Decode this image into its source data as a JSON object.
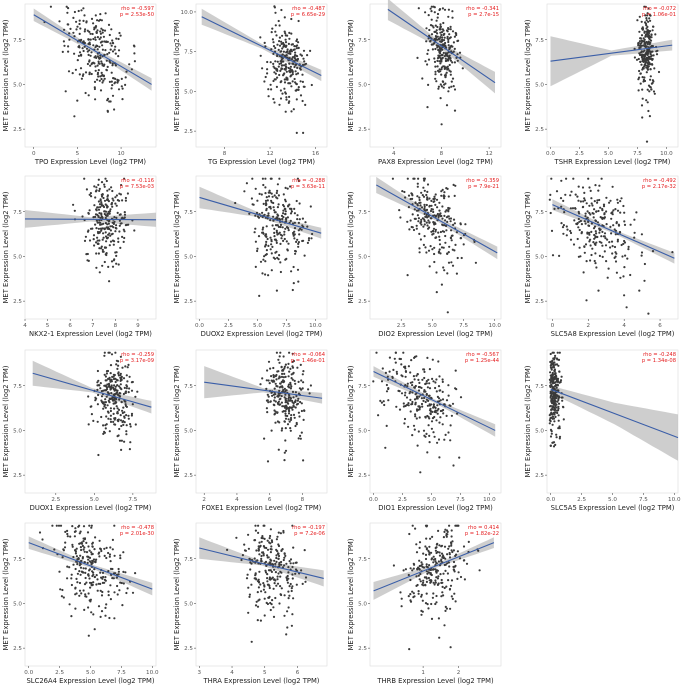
{
  "y_label": "MET Expression Level (log2 TPM)",
  "colors": {
    "points": "#3a3a3a",
    "line": "#3a5ea8",
    "band": "#b9b9b9",
    "stats": "#e41a1c",
    "axis": "#333333"
  },
  "chart_data": [
    {
      "type": "scatter",
      "xlabel": "TPO Expression Level (log2 TPM)",
      "rho": "rho = -0.597",
      "p": "p = 2.53e-50",
      "x_ticks": [
        "0",
        "5",
        "10"
      ],
      "x_range": [
        -1,
        14
      ],
      "y_ticks": [
        "2.5",
        "5.0",
        "7.5"
      ],
      "y_range": [
        1.5,
        9.5
      ],
      "regression": {
        "x0": 0,
        "y0": 8.9,
        "x1": 13.5,
        "y1": 5.0
      },
      "band_width": [
        0.35,
        0.12,
        0.35
      ],
      "cloud_center": 7.0,
      "cloud_spread": 3.5,
      "n_points": 260
    },
    {
      "type": "scatter",
      "xlabel": "TG Expression Level (log2 TPM)",
      "rho": "rho = -0.487",
      "p": "p = 6.65e-29",
      "x_ticks": [
        "8",
        "12",
        "16"
      ],
      "x_range": [
        5.5,
        17
      ],
      "y_ticks": [
        "2.5",
        "5.0",
        "7.5",
        "10.0"
      ],
      "y_range": [
        1.5,
        10.5
      ],
      "regression": {
        "x0": 6,
        "y0": 9.7,
        "x1": 16.5,
        "y1": 6.0
      },
      "band_width": [
        0.5,
        0.15,
        0.35
      ],
      "cloud_center": 13.5,
      "cloud_spread": 1.6,
      "n_points": 260
    },
    {
      "type": "scatter",
      "xlabel": "PAX8 Expression Level (log2 TPM)",
      "rho": "rho = -0.341",
      "p": "p = 2.7e-15",
      "x_ticks": [
        "4",
        "8",
        "12"
      ],
      "x_range": [
        2,
        13
      ],
      "y_ticks": [
        "2.5",
        "5.0",
        "7.5"
      ],
      "y_range": [
        1.5,
        9.5
      ],
      "regression": {
        "x0": 3.5,
        "y0": 9.2,
        "x1": 12.5,
        "y1": 5.1
      },
      "band_width": [
        0.6,
        0.15,
        0.6
      ],
      "cloud_center": 8.0,
      "cloud_spread": 1.1,
      "n_points": 260
    },
    {
      "type": "scatter",
      "xlabel": "TSHR Expression Level (log2 TPM)",
      "rho": "rho = -0.072",
      "p": "p = 1.06e-01",
      "x_ticks": [
        "0.0",
        "2.5",
        "5.0",
        "7.5",
        "10.0"
      ],
      "x_range": [
        -0.3,
        11
      ],
      "y_ticks": [
        "2.5",
        "5.0",
        "7.5"
      ],
      "y_range": [
        1.5,
        9.5
      ],
      "regression": {
        "x0": 0,
        "y0": 6.3,
        "x1": 10.5,
        "y1": 7.2
      },
      "band_width": [
        1.4,
        0.15,
        0.3
      ],
      "cloud_center": 8.3,
      "cloud_spread": 0.7,
      "n_points": 260
    },
    {
      "type": "scatter",
      "xlabel": "NKX2-1 Expression Level (log2 TPM)",
      "rho": "rho = -0.116",
      "p": "p = 7.53e-03",
      "x_ticks": [
        "4",
        "5",
        "6",
        "7",
        "8",
        "9"
      ],
      "x_range": [
        4,
        9.8
      ],
      "y_ticks": [
        "2.5",
        "5.0",
        "7.5"
      ],
      "y_range": [
        1.5,
        9.5
      ],
      "regression": {
        "x0": 4,
        "y0": 7.1,
        "x1": 9.8,
        "y1": 7.05
      },
      "band_width": [
        0.5,
        0.12,
        0.4
      ],
      "cloud_center": 7.6,
      "cloud_spread": 0.9,
      "n_points": 260
    },
    {
      "type": "scatter",
      "xlabel": "DUOX2 Expression Level (log2 TPM)",
      "rho": "rho = -0.288",
      "p": "p = 3.63e-11",
      "x_ticks": [
        "0.0",
        "2.5",
        "5.0",
        "7.5",
        "10.0"
      ],
      "x_range": [
        -0.3,
        11
      ],
      "y_ticks": [
        "2.5",
        "5.0",
        "7.5"
      ],
      "y_range": [
        1.5,
        9.5
      ],
      "regression": {
        "x0": 0,
        "y0": 8.3,
        "x1": 10.5,
        "y1": 6.3
      },
      "band_width": [
        0.6,
        0.12,
        0.3
      ],
      "cloud_center": 6.8,
      "cloud_spread": 2.2,
      "n_points": 260
    },
    {
      "type": "scatter",
      "xlabel": "DIO2 Expression Level (log2 TPM)",
      "rho": "rho = -0.359",
      "p": "p = 7.9e-21",
      "x_ticks": [
        "2.5",
        "5.0",
        "7.5",
        "10.0"
      ],
      "x_range": [
        0,
        10.5
      ],
      "y_ticks": [
        "2.5",
        "5.0",
        "7.5"
      ],
      "y_range": [
        1.5,
        9.5
      ],
      "regression": {
        "x0": 0.5,
        "y0": 9.0,
        "x1": 10.2,
        "y1": 5.2
      },
      "band_width": [
        0.45,
        0.12,
        0.35
      ],
      "cloud_center": 5.2,
      "cloud_spread": 2.2,
      "n_points": 260
    },
    {
      "type": "scatter",
      "xlabel": "SLC5A8 Expression Level (log2 TPM)",
      "rho": "rho = -0.492",
      "p": "p = 2.17e-32",
      "x_ticks": [
        "0",
        "2",
        "4",
        "6"
      ],
      "x_range": [
        -0.3,
        7
      ],
      "y_ticks": [
        "2.5",
        "5.0",
        "7.5"
      ],
      "y_range": [
        1.5,
        9.5
      ],
      "regression": {
        "x0": 0,
        "y0": 7.9,
        "x1": 6.8,
        "y1": 4.9
      },
      "band_width": [
        0.3,
        0.1,
        0.3
      ],
      "cloud_center": 2.5,
      "cloud_spread": 2.0,
      "n_points": 260
    },
    {
      "type": "scatter",
      "xlabel": "DUOX1 Expression Level (log2 TPM)",
      "rho": "rho = -0.259",
      "p": "p = 3.17e-09",
      "x_ticks": [
        "2.5",
        "5.0",
        "7.5"
      ],
      "x_range": [
        0.5,
        9
      ],
      "y_ticks": [
        "2.5",
        "5.0",
        "7.5"
      ],
      "y_range": [
        1.5,
        9.5
      ],
      "regression": {
        "x0": 1,
        "y0": 8.2,
        "x1": 8.7,
        "y1": 6.3
      },
      "band_width": [
        0.7,
        0.12,
        0.35
      ],
      "cloud_center": 6.3,
      "cloud_spread": 1.1,
      "n_points": 260
    },
    {
      "type": "scatter",
      "xlabel": "FOXE1 Expression Level (log2 TPM)",
      "rho": "rho = -0.064",
      "p": "p = 1.46e-01",
      "x_ticks": [
        "2",
        "4",
        "6",
        "8"
      ],
      "x_range": [
        1.5,
        9.5
      ],
      "y_ticks": [
        "2.5",
        "5.0",
        "7.5"
      ],
      "y_range": [
        1.5,
        9.5
      ],
      "regression": {
        "x0": 2,
        "y0": 7.7,
        "x1": 9.2,
        "y1": 6.8
      },
      "band_width": [
        0.9,
        0.12,
        0.3
      ],
      "cloud_center": 6.9,
      "cloud_spread": 1.1,
      "n_points": 260
    },
    {
      "type": "scatter",
      "xlabel": "DIO1 Expression Level (log2 TPM)",
      "rho": "rho = -0.567",
      "p": "p = 1.25e-44",
      "x_ticks": [
        "0.0",
        "2.5",
        "5.0",
        "7.5",
        "10.0"
      ],
      "x_range": [
        -0.3,
        11
      ],
      "y_ticks": [
        "2.5",
        "5.0",
        "7.5"
      ],
      "y_range": [
        1.5,
        9.5
      ],
      "regression": {
        "x0": 0,
        "y0": 8.3,
        "x1": 10.5,
        "y1": 5.0
      },
      "band_width": [
        0.3,
        0.1,
        0.35
      ],
      "cloud_center": 4.0,
      "cloud_spread": 2.8,
      "n_points": 260
    },
    {
      "type": "scatter",
      "xlabel": "SLC5A5 Expression Level (log2 TPM)",
      "rho": "rho = -0.248",
      "p": "p = 1.34e-08",
      "x_ticks": [
        "0.0",
        "2.5",
        "5.0",
        "7.5",
        "10.0"
      ],
      "x_range": [
        -0.3,
        10.3
      ],
      "y_ticks": [
        "2.5",
        "5.0",
        "7.5"
      ],
      "y_range": [
        1.5,
        9.5
      ],
      "regression": {
        "x0": 0,
        "y0": 7.3,
        "x1": 10.3,
        "y1": 4.6
      },
      "band_width": [
        0.2,
        0.6,
        1.3
      ],
      "cloud_center": 0.3,
      "cloud_spread": 0.5,
      "n_points": 260
    },
    {
      "type": "scatter",
      "xlabel": "SLC26A4 Expression Level (log2 TPM)",
      "rho": "rho = -0.478",
      "p": "p = 2.01e-30",
      "x_ticks": [
        "0.0",
        "2.5",
        "5.0",
        "7.5",
        "10.0"
      ],
      "x_range": [
        -0.3,
        10.3
      ],
      "y_ticks": [
        "2.5",
        "5.0",
        "7.5"
      ],
      "y_range": [
        1.5,
        9.5
      ],
      "regression": {
        "x0": 0,
        "y0": 8.4,
        "x1": 10,
        "y1": 5.8
      },
      "band_width": [
        0.35,
        0.1,
        0.35
      ],
      "cloud_center": 5.0,
      "cloud_spread": 2.5,
      "n_points": 260
    },
    {
      "type": "scatter",
      "xlabel": "THRA Expression Level (log2 TPM)",
      "rho": "rho = -0.197",
      "p": "p = 7.2e-06",
      "x_ticks": [
        "3",
        "4",
        "5",
        "6"
      ],
      "x_range": [
        2.9,
        6.9
      ],
      "y_ticks": [
        "2.5",
        "5.0",
        "7.5"
      ],
      "y_range": [
        1.5,
        9.5
      ],
      "regression": {
        "x0": 3,
        "y0": 8.1,
        "x1": 6.8,
        "y1": 6.4
      },
      "band_width": [
        0.6,
        0.12,
        0.45
      ],
      "cloud_center": 5.2,
      "cloud_spread": 0.8,
      "n_points": 260
    },
    {
      "type": "scatter",
      "xlabel": "THRB Expression Level (log2 TPM)",
      "rho": "rho = 0.414",
      "p": "p = 1.82e-22",
      "x_ticks": [
        "1",
        "2"
      ],
      "x_range": [
        -0.5,
        3.2
      ],
      "y_ticks": [
        "2.5",
        "5.0",
        "7.5"
      ],
      "y_range": [
        1.5,
        9.5
      ],
      "regression": {
        "x0": -0.4,
        "y0": 5.7,
        "x1": 3.0,
        "y1": 8.4
      },
      "band_width": [
        0.5,
        0.1,
        0.3
      ],
      "cloud_center": 1.4,
      "cloud_spread": 0.8,
      "n_points": 260
    }
  ]
}
